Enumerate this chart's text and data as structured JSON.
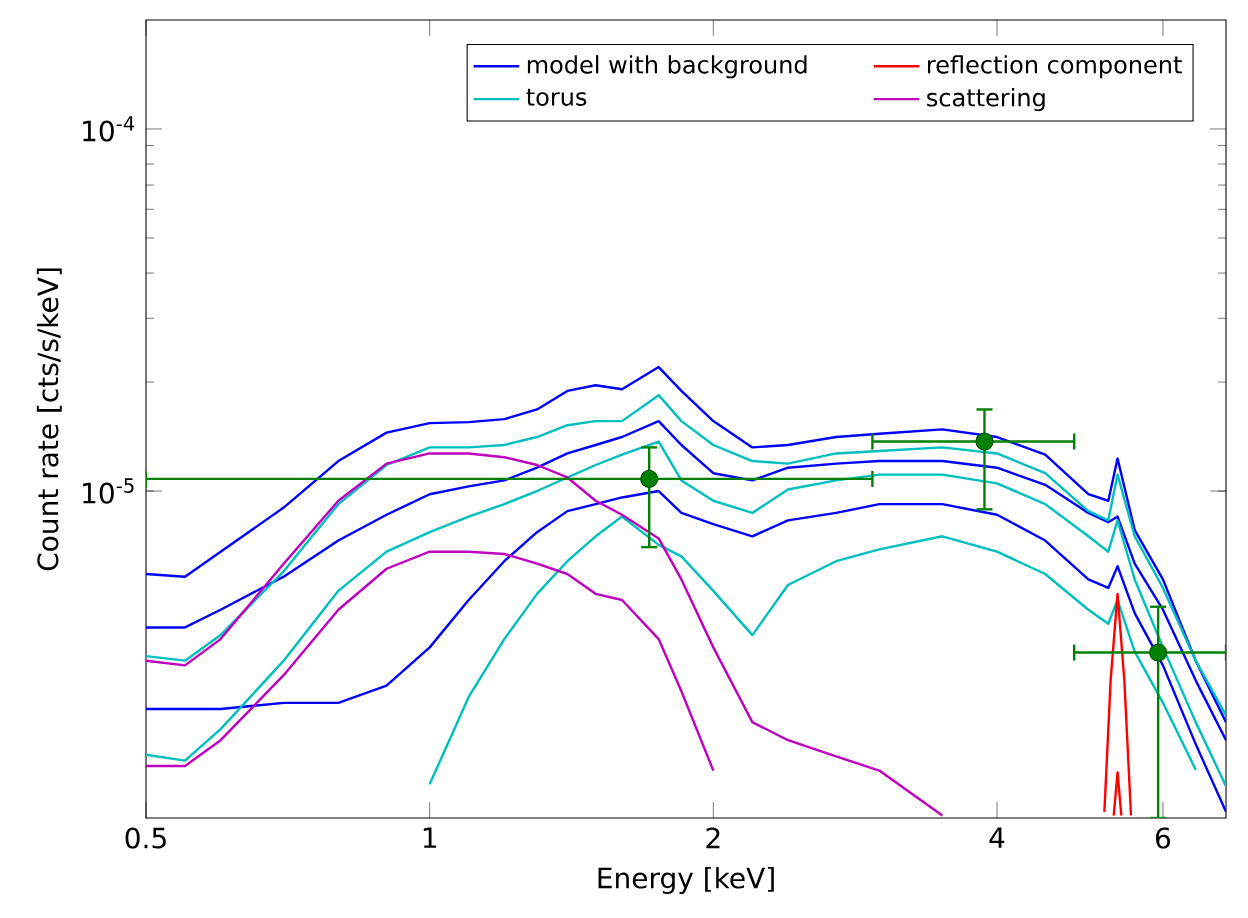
{
  "chart_data": {
    "type": "line",
    "xlabel": "Energy [keV]",
    "ylabel": "Count rate [cts/s/keV]",
    "log": "xy",
    "xlim": [
      0.5,
      7
    ],
    "ylim": [
      1.25e-06,
      0.0002
    ],
    "xticks": [
      0.5,
      1,
      2,
      4,
      6
    ],
    "yticks": [
      {
        "value": 1e-05,
        "label": "10$^{-5}$"
      },
      {
        "value": 0.0001,
        "label": "10$^{-4}$"
      }
    ],
    "legend": "top right",
    "x": [
      0.5,
      0.55,
      0.6,
      0.7,
      0.8,
      0.9,
      1.0,
      1.1,
      1.2,
      1.3,
      1.4,
      1.5,
      1.6,
      1.75,
      1.85,
      2.0,
      2.2,
      2.4,
      2.7,
      3.0,
      3.5,
      4.0,
      4.5,
      5.0,
      5.25,
      5.37,
      5.6,
      6.0,
      6.5,
      7.0
    ],
    "series": [
      {
        "name": "model with background",
        "color": "#0000ff",
        "values": [
          4.2e-06,
          4.2e-06,
          4.7e-06,
          5.8e-06,
          7.3e-06,
          8.6e-06,
          9.8e-06,
          1.03e-05,
          1.07e-05,
          1.16e-05,
          1.27e-05,
          1.34e-05,
          1.41e-05,
          1.56e-05,
          1.34e-05,
          1.12e-05,
          1.07e-05,
          1.16e-05,
          1.19e-05,
          1.21e-05,
          1.21e-05,
          1.16e-05,
          1.04e-05,
          8.7e-06,
          8.2e-06,
          8.5e-06,
          6.3e-06,
          4.7e-06,
          3e-06,
          2.05e-06
        ]
      },
      {
        "color": "#0000ff",
        "values": [
          2.5e-06,
          2.5e-06,
          2.5e-06,
          2.6e-06,
          2.6e-06,
          2.9e-06,
          3.7e-06,
          5e-06,
          6.4e-06,
          7.7e-06,
          8.8e-06,
          9.2e-06,
          9.6e-06,
          1e-05,
          8.7e-06,
          8.1e-06,
          7.5e-06,
          8.3e-06,
          8.7e-06,
          9.2e-06,
          9.2e-06,
          8.6e-06,
          7.3e-06,
          5.7e-06,
          5.4e-06,
          6.2e-06,
          4.6e-06,
          3.3e-06,
          2e-06,
          1.3e-06
        ]
      },
      {
        "color": "#0000ff",
        "values": [
          5.9e-06,
          5.8e-06,
          6.8e-06,
          9e-06,
          1.21e-05,
          1.45e-05,
          1.54e-05,
          1.55e-05,
          1.58e-05,
          1.68e-05,
          1.89e-05,
          1.96e-05,
          1.91e-05,
          2.2e-05,
          1.89e-05,
          1.56e-05,
          1.32e-05,
          1.34e-05,
          1.41e-05,
          1.44e-05,
          1.48e-05,
          1.41e-05,
          1.26e-05,
          9.8e-06,
          9.4e-06,
          1.23e-05,
          7.8e-06,
          5.7e-06,
          3.4e-06,
          2.3e-06
        ]
      },
      {
        "name": "torus",
        "color": "#00bfbf",
        "values": [
          1.87e-06,
          1.8e-06,
          2.2e-06,
          3.4e-06,
          5.3e-06,
          6.8e-06,
          7.7e-06,
          8.5e-06,
          9.2e-06,
          1e-05,
          1.09e-05,
          1.18e-05,
          1.26e-05,
          1.37e-05,
          1.07e-05,
          9.4e-06,
          8.7e-06,
          1.01e-05,
          1.07e-05,
          1.11e-05,
          1.11e-05,
          1.05e-05,
          9.2e-06,
          7.5e-06,
          6.8e-06,
          8.3e-06,
          5.7e-06,
          3.7e-06,
          2.3e-06,
          1.53e-06
        ]
      },
      {
        "color": "#00bfbf",
        "values": [
          null,
          null,
          null,
          null,
          null,
          null,
          1.55e-06,
          2.7e-06,
          3.9e-06,
          5.2e-06,
          6.4e-06,
          7.5e-06,
          8.5e-06,
          7.1e-06,
          6.6e-06,
          5.3e-06,
          4e-06,
          5.5e-06,
          6.4e-06,
          6.9e-06,
          7.5e-06,
          6.8e-06,
          5.9e-06,
          4.7e-06,
          4.3e-06,
          5e-06,
          3.6e-06,
          2.6e-06,
          1.7e-06,
          null
        ]
      },
      {
        "color": "#00bfbf",
        "values": [
          3.5e-06,
          3.4e-06,
          4e-06,
          6e-06,
          9.2e-06,
          1.18e-05,
          1.32e-05,
          1.32e-05,
          1.34e-05,
          1.41e-05,
          1.52e-05,
          1.56e-05,
          1.56e-05,
          1.84e-05,
          1.56e-05,
          1.34e-05,
          1.21e-05,
          1.19e-05,
          1.27e-05,
          1.29e-05,
          1.32e-05,
          1.27e-05,
          1.12e-05,
          8.8e-06,
          8.3e-06,
          1.11e-05,
          7.5e-06,
          5.4e-06,
          3.4e-06,
          2.4e-06
        ]
      },
      {
        "name": "reflection component",
        "color": "#ff0000",
        "x": [
          5.2,
          5.28,
          5.37,
          5.46,
          5.55
        ],
        "values": [
          1.3e-06,
          3e-06,
          5.2e-06,
          3e-06,
          1.27e-06
        ]
      },
      {
        "color": "#ff0000",
        "x": [
          5.32,
          5.37,
          5.42
        ],
        "values": [
          1.27e-06,
          1.67e-06,
          1.27e-06
        ]
      },
      {
        "name": "scattering",
        "color": "#bf00bf",
        "values": [
          1.74e-06,
          1.74e-06,
          2.05e-06,
          3.1e-06,
          4.7e-06,
          6.1e-06,
          6.8e-06,
          6.8e-06,
          6.7e-06,
          6.3e-06,
          5.9e-06,
          5.2e-06,
          5e-06,
          3.9e-06,
          2.8e-06,
          1.69e-06,
          null,
          null,
          null,
          null,
          null,
          null,
          null,
          null,
          null,
          null,
          null,
          null,
          null,
          null
        ]
      },
      {
        "color": "#bf00bf",
        "values": [
          3.4e-06,
          3.3e-06,
          3.9e-06,
          6.3e-06,
          9.4e-06,
          1.19e-05,
          1.27e-05,
          1.27e-05,
          1.24e-05,
          1.18e-05,
          1.09e-05,
          9.4e-06,
          8.6e-06,
          7.4e-06,
          5.7e-06,
          3.7e-06,
          2.3e-06,
          2.05e-06,
          1.85e-06,
          1.69e-06,
          1.27e-06,
          null,
          null,
          null,
          null,
          null,
          null,
          null,
          null,
          null
        ]
      },
      {
        "type": "scatter",
        "marker": "circle",
        "color": "#008000",
        "x": [
          1.71,
          3.88,
          5.93
        ],
        "values": [
          1.08e-05,
          1.37e-05,
          3.58e-06
        ],
        "errors": [
          [
            7e-06,
            1.32e-05
          ],
          [
            8.9e-06,
            1.68e-05
          ],
          [
            1.25e-06,
            4.79e-06
          ]
        ],
        "xerrors": [
          [
            0.5,
            2.95
          ],
          [
            2.95,
            4.83
          ],
          [
            4.83,
            7
          ]
        ]
      }
    ]
  }
}
